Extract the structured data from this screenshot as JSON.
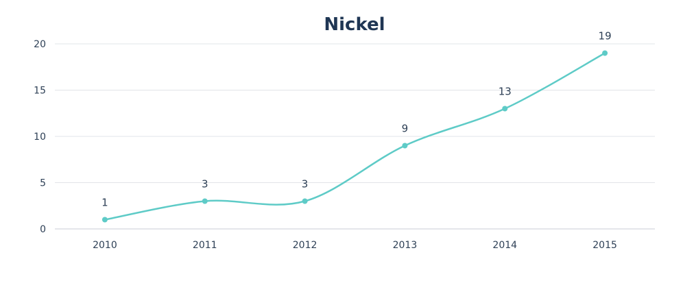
{
  "chart_data": {
    "type": "line",
    "title": "Nickel",
    "xlabel": "",
    "ylabel": "",
    "categories": [
      "2010",
      "2011",
      "2012",
      "2013",
      "2014",
      "2015"
    ],
    "series": [
      {
        "values": [
          1,
          3,
          3,
          9,
          13,
          19
        ]
      }
    ],
    "ylim": [
      0,
      20
    ],
    "yticks": [
      "0",
      "5",
      "10",
      "15",
      "20"
    ],
    "data_labels": [
      "1",
      "3",
      "3",
      "9",
      "13",
      "19"
    ],
    "grid": true,
    "line_style": "smooth",
    "line_color": "#5ecbc7",
    "marker_color": "#5ecbc7"
  }
}
